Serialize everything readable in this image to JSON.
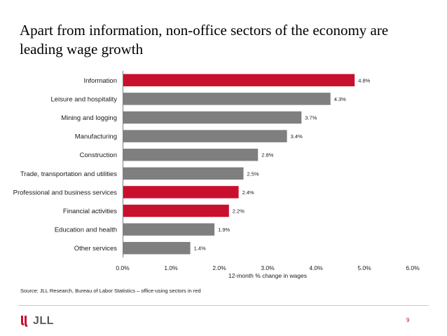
{
  "slide": {
    "title": "Apart from information, non-office sectors of the economy are leading wage growth",
    "source": "Source: JLL Research, Bureau of Labor Statistics – office-using sectors in red",
    "logo_text": "JLL",
    "page_number": "9"
  },
  "colors": {
    "office": "#c8102e",
    "non_office": "#7f7f7f",
    "axis": "#7f7f7f",
    "logo_red": "#c8102e"
  },
  "chart_data": {
    "type": "bar",
    "orientation": "horizontal",
    "title": "",
    "xlabel": "12-month % change in wages",
    "ylabel": "",
    "xlim": [
      0,
      6
    ],
    "categories": [
      "Information",
      "Leisure and hospitality",
      "Mining and logging",
      "Manufacturing",
      "Construction",
      "Trade, transportation and utilities",
      "Professional and business services",
      "Financial activities",
      "Education and health",
      "Other services"
    ],
    "values": [
      4.8,
      4.3,
      3.7,
      3.4,
      2.8,
      2.5,
      2.4,
      2.2,
      1.9,
      1.4
    ],
    "value_labels": [
      "4.8%",
      "4.3%",
      "3.7%",
      "3.4%",
      "2.8%",
      "2.5%",
      "2.4%",
      "2.2%",
      "1.9%",
      "1.4%"
    ],
    "office_using": [
      true,
      false,
      false,
      false,
      false,
      false,
      true,
      true,
      false,
      false
    ],
    "x_ticks": [
      0,
      1,
      2,
      3,
      4,
      5,
      6
    ],
    "x_tick_labels": [
      "0.0%",
      "1.0%",
      "2.0%",
      "3.0%",
      "4.0%",
      "5.0%",
      "6.0%"
    ],
    "grid": false,
    "legend": "none"
  }
}
